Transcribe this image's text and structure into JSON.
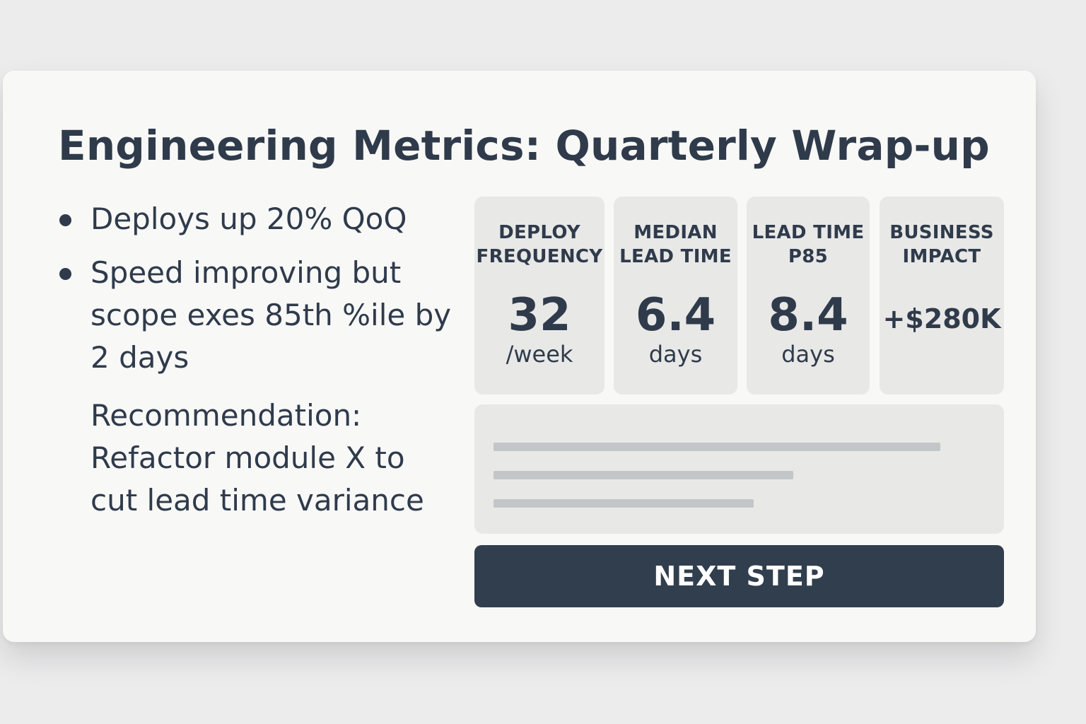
{
  "slide": {
    "title": "Engineering Metrics: Quarterly Wrap-up",
    "bullets": [
      "Deploys up 20% QoQ",
      "Speed improving but scope exes 85th %ile by 2 days"
    ],
    "recommendation": "Recommendation: Refactor module X to cut lead time variance"
  },
  "metrics": [
    {
      "label_line1": "DEPLOY",
      "label_line2": "FREQUENCY",
      "value": "32",
      "unit": "/week"
    },
    {
      "label_line1": "MEDIAN",
      "label_line2": "LEAD TIME",
      "value": "6.4",
      "unit": "days"
    },
    {
      "label_line1": "LEAD TIME",
      "label_line2": "P85",
      "value": "8.4",
      "unit": "days"
    },
    {
      "label_line1": "BUSINESS",
      "label_line2": "IMPACT",
      "value": "+$280K"
    }
  ],
  "summary_panel": {
    "placeholder_lines": [
      {
        "fill_fraction": 0.91
      },
      {
        "fill_fraction": 0.61
      },
      {
        "fill_fraction": 0.53
      }
    ]
  },
  "actions": {
    "next_label": "NEXT STEP"
  },
  "colors": {
    "background": "#ececed",
    "card": "#f8f8f7",
    "tile": "#e8e8e7",
    "text": "#2f3b4b",
    "button": "#313e4e",
    "placeholder": "#c3c6c9"
  }
}
